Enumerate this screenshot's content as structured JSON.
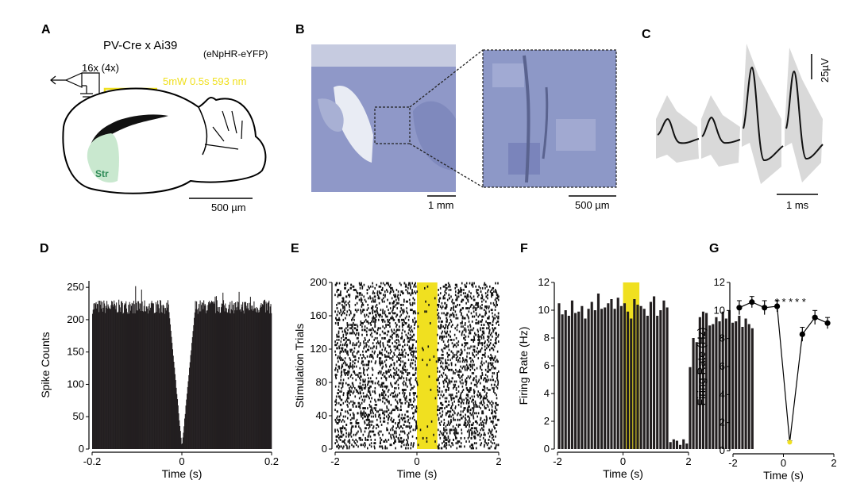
{
  "panels": {
    "A": {
      "label": "A",
      "title": "PV-Cre  x  Ai39",
      "title_sub": "(eNpHR-eYFP)",
      "amp_label": "16x (4x)",
      "laser_label": "5mW 0.5s 593 nm",
      "region": "Str",
      "scale": "500 µm"
    },
    "B": {
      "label": "B",
      "scale_left": "1 mm",
      "scale_right": "500  µm"
    },
    "C": {
      "label": "C",
      "scale_v": "25µV",
      "scale_h": "1 ms"
    },
    "D": {
      "label": "D"
    },
    "E": {
      "label": "E"
    },
    "F": {
      "label": "F"
    },
    "G": {
      "label": "G",
      "stars": [
        "* * *",
        "* *"
      ]
    }
  },
  "colors": {
    "laser": "#f0e020",
    "bar": "#231f20",
    "tissue": "#8a93c4",
    "region": "#c9e8cf"
  },
  "chart_data": [
    {
      "panel": "D",
      "type": "bar",
      "xlabel": "Time (s)",
      "ylabel": "Spike Counts",
      "xlim": [
        -0.2,
        0.2
      ],
      "ylim": [
        0,
        260
      ],
      "xticks": [
        "-0.2",
        "0",
        "0.2"
      ],
      "yticks": [
        "0",
        "50",
        "100",
        "150",
        "200",
        "250"
      ],
      "description_values": {
        "baseline": 220,
        "trough_at_0": 0
      }
    },
    {
      "panel": "E",
      "type": "scatter",
      "xlabel": "Time (s)",
      "ylabel": "Stimulation Trials",
      "xlim": [
        -2,
        2
      ],
      "ylim": [
        0,
        200
      ],
      "xticks": [
        "-2",
        "0",
        "2"
      ],
      "yticks": [
        "0",
        "40",
        "80",
        "120",
        "160",
        "200"
      ],
      "stim_window": [
        0,
        0.5
      ]
    },
    {
      "panel": "F",
      "type": "bar",
      "xlabel": "Time (s)",
      "ylabel": "Firing Rate (Hz)",
      "xlim": [
        -2,
        2
      ],
      "ylim": [
        0,
        12
      ],
      "xticks": [
        "-2",
        "0",
        "2"
      ],
      "yticks": [
        "0",
        "2",
        "4",
        "6",
        "8",
        "10",
        "12"
      ],
      "stim_window": [
        0,
        0.5
      ],
      "bin_width": 0.1,
      "bin_start": -2,
      "values": [
        10.5,
        9.7,
        10.0,
        9.6,
        10.7,
        9.8,
        9.9,
        10.3,
        9.4,
        10.1,
        10.6,
        10.0,
        11.2,
        10.1,
        10.2,
        10.5,
        10.8,
        10.1,
        10.9,
        10.3,
        10.5,
        9.9,
        9.4,
        10.8,
        10.4,
        10.3,
        10.1,
        9.6,
        10.6,
        11.0,
        9.6,
        10.0,
        10.7,
        10.2,
        0.5,
        0.7,
        0.6,
        0.3,
        0.7,
        0.4,
        5.9,
        8.0,
        7.7,
        9.5,
        9.9,
        9.8,
        8.9,
        9.0,
        9.5,
        9.2,
        9.9,
        9.4,
        10.0,
        9.1,
        9.2,
        9.6,
        8.8,
        9.4,
        9.0,
        8.7
      ],
      "_note_removed": true
    },
    {
      "panel": "G",
      "type": "line",
      "xlabel": "Time (s)",
      "ylabel": "Firing Rate (Hz)",
      "xlim": [
        -2,
        2
      ],
      "ylim": [
        0,
        12
      ],
      "xticks": [
        "-2",
        "0",
        "2"
      ],
      "yticks": [
        "0",
        "2",
        "4",
        "6",
        "8",
        "10",
        "12"
      ],
      "x": [
        -1.75,
        -1.25,
        -0.75,
        -0.25,
        0.25,
        0.75,
        1.25,
        1.75
      ],
      "y": [
        10.2,
        10.6,
        10.2,
        10.3,
        0.6,
        8.3,
        9.5,
        9.1
      ],
      "err": [
        0.5,
        0.4,
        0.5,
        0.4,
        0.1,
        0.5,
        0.5,
        0.4
      ]
    }
  ]
}
